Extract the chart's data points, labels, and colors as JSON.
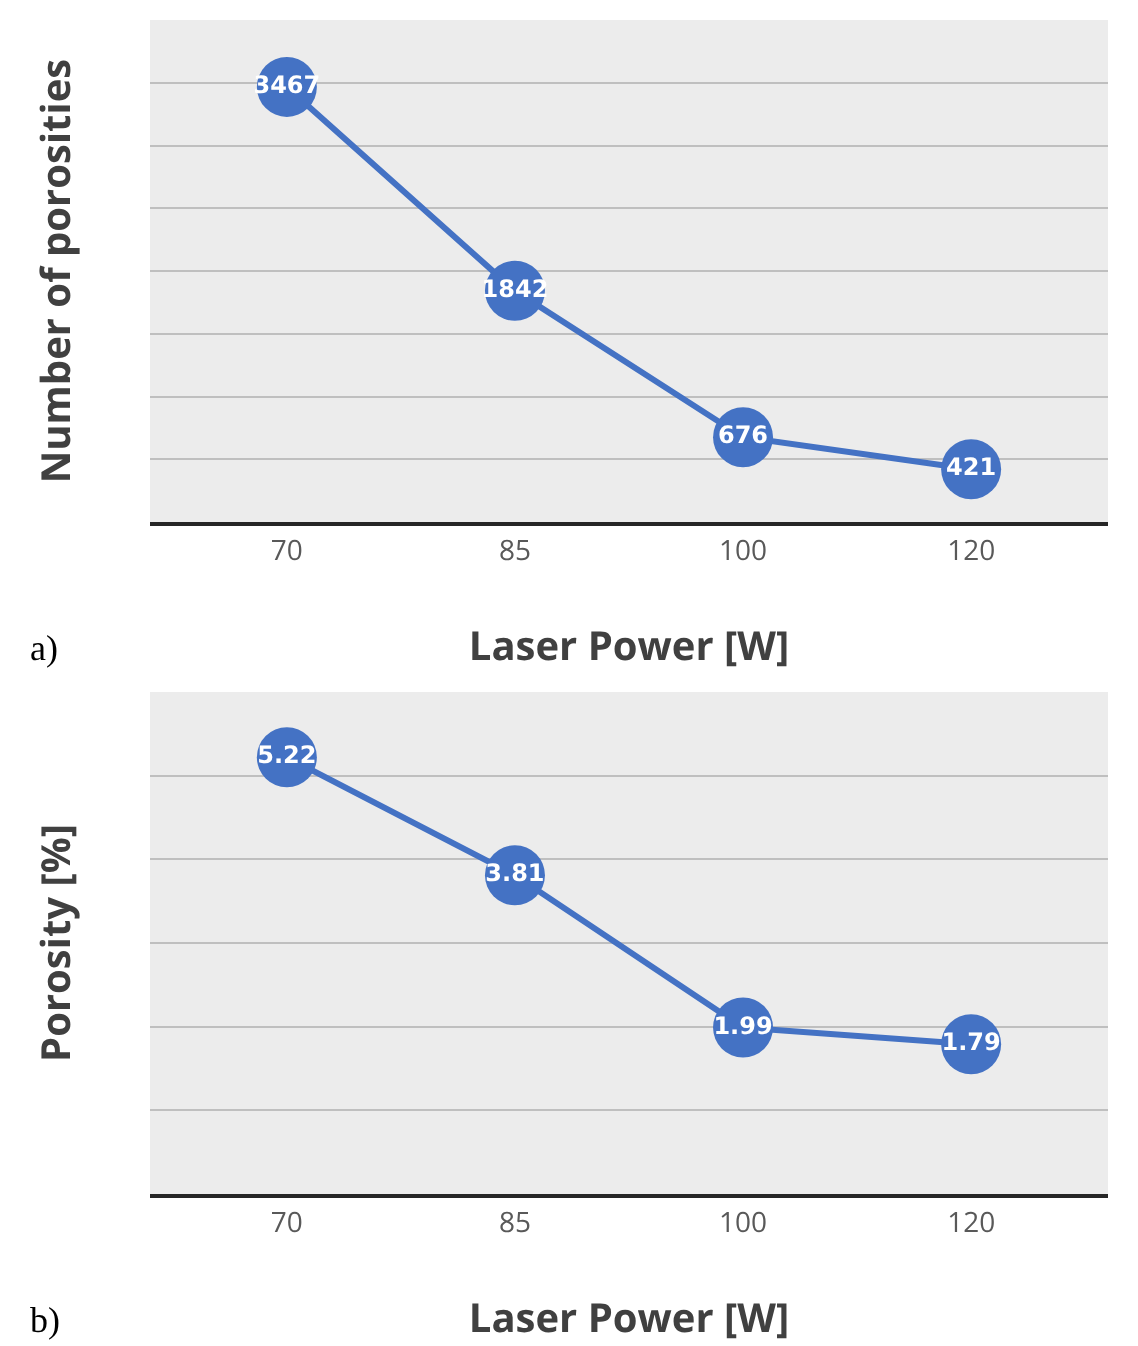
{
  "chart_data": [
    {
      "type": "line",
      "xlabel": "Laser Power [W]",
      "ylabel": "Number of porosities",
      "categories": [
        "70",
        "85",
        "100",
        "120"
      ],
      "series": [
        {
          "color": "#4472c4",
          "values": [
            3467,
            1842,
            676,
            421
          ]
        }
      ],
      "ylim": [
        0,
        4000
      ],
      "yticks": [
        {
          "value": 0,
          "label": null
        },
        {
          "value": 500,
          "label": null
        },
        {
          "value": 1000,
          "label": null
        },
        {
          "value": 1500,
          "label": null
        },
        {
          "value": 2000,
          "label": null
        },
        {
          "value": 2500,
          "label": null
        },
        {
          "value": 3000,
          "label": null
        },
        {
          "value": 3500,
          "label": null
        },
        {
          "value": 4000,
          "label": null
        }
      ],
      "tick_labels": "x",
      "grid": "y",
      "marker": "circle",
      "line_style": "solid",
      "data_labels": true,
      "annotations": [
        "a)"
      ]
    },
    {
      "type": "line",
      "xlabel": "Laser Power [W]",
      "ylabel": "Porosity [%]",
      "categories": [
        "70",
        "85",
        "100",
        "120"
      ],
      "series": [
        {
          "color": "#4472c4",
          "values": [
            5.22,
            3.81,
            1.99,
            1.79
          ]
        }
      ],
      "ylim": [
        0,
        6
      ],
      "yticks": [
        {
          "value": 0,
          "label": null
        },
        {
          "value": 1,
          "label": null
        },
        {
          "value": 2,
          "label": null
        },
        {
          "value": 3,
          "label": null
        },
        {
          "value": 4,
          "label": null
        },
        {
          "value": 5,
          "label": null
        },
        {
          "value": 6,
          "label": null
        }
      ],
      "tick_labels": "x",
      "grid": "y",
      "marker": "circle",
      "line_style": "solid",
      "data_labels": true,
      "annotations": [
        "b)"
      ]
    }
  ]
}
